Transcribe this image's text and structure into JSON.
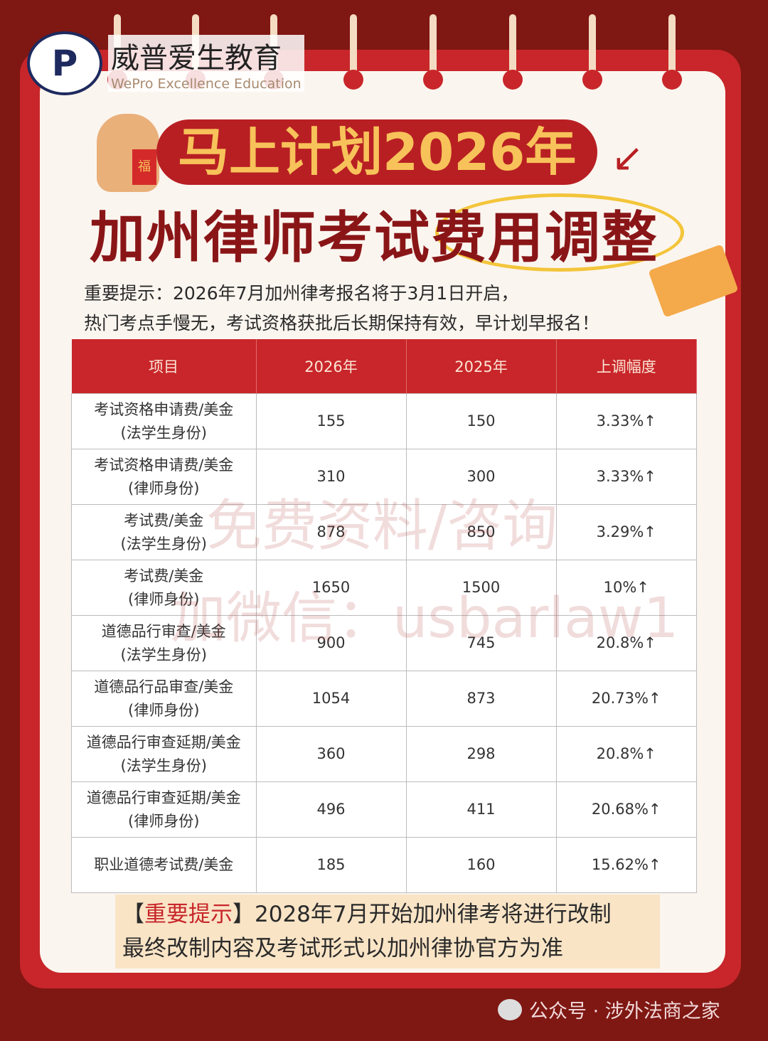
{
  "brand": {
    "name_cn": "威普爱生教育",
    "name_en": "WePro Excellence Education",
    "mark": "P"
  },
  "title": {
    "line1": "马上计划2026年",
    "line2": "加州律师考试费用调整"
  },
  "notice": {
    "line1": "重要提示：2026年7月加州律考报名将于3月1日开启，",
    "line2": "热门考点手慢无，考试资格获批后长期保持有效，早计划早报名！"
  },
  "table": {
    "headers": [
      "项目",
      "2026年",
      "2025年",
      "上调幅度"
    ],
    "rows": [
      {
        "item": "考试资格申请费/美金",
        "sub": "(法学生身份)",
        "y2026": "155",
        "y2025": "150",
        "change": "3.33%↑"
      },
      {
        "item": "考试资格申请费/美金",
        "sub": "(律师身份)",
        "y2026": "310",
        "y2025": "300",
        "change": "3.33%↑"
      },
      {
        "item": "考试费/美金",
        "sub": "(法学生身份)",
        "y2026": "878",
        "y2025": "850",
        "change": "3.29%↑"
      },
      {
        "item": "考试费/美金",
        "sub": "(律师身份)",
        "y2026": "1650",
        "y2025": "1500",
        "change": "10%↑"
      },
      {
        "item": "道德品行审查/美金",
        "sub": "(法学生身份)",
        "y2026": "900",
        "y2025": "745",
        "change": "20.8%↑"
      },
      {
        "item": "道德品行品审查/美金",
        "sub": "(律师身份)",
        "y2026": "1054",
        "y2025": "873",
        "change": "20.73%↑"
      },
      {
        "item": "道德品行审查延期/美金",
        "sub": "(法学生身份)",
        "y2026": "360",
        "y2025": "298",
        "change": "20.8%↑"
      },
      {
        "item": "道德品行审查延期/美金",
        "sub": "(律师身份)",
        "y2026": "496",
        "y2025": "411",
        "change": "20.68%↑"
      },
      {
        "item": "职业道德考试费/美金",
        "sub": "",
        "y2026": "185",
        "y2025": "160",
        "change": "15.62%↑"
      }
    ]
  },
  "watermark": {
    "line1": "免费资料/咨询",
    "line2": "加微信：usbarlaw1"
  },
  "tip": {
    "open": "【",
    "highlight": "重要提示",
    "close": "】",
    "line1": "2028年7月开始加州律考将进行改制",
    "line2": "最终改制内容及考试形式以加州律协官方为准"
  },
  "footer": {
    "text": "公众号 · 涉外法商之家",
    "icon": "wechat-icon"
  },
  "colors": {
    "background": "#7f1713",
    "frame": "#c8262a",
    "card": "#fbf5ef",
    "title_gold": "#f8c25a",
    "title_dark": "#8a1517",
    "tip_bg": "#f9e4c6"
  }
}
